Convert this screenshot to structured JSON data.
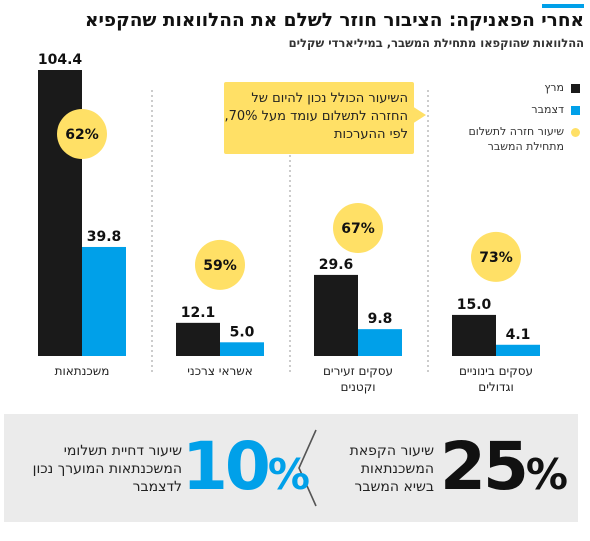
{
  "header": {
    "title": "אחרי הפאניקה: הציבור חוזר לשלם את ההלוואות שהקפיא",
    "subtitle": "ההלוואות שהוקפאו מתחילת המשבר, במיליארדי שקלים"
  },
  "callout": {
    "text": "השיעור הכולל נכון להיום של החזרה לתשלום עומד מעל 70%, לפי ההערכות"
  },
  "legend": [
    {
      "label": "מרץ",
      "color": "#1a1a1a",
      "shape": "square"
    },
    {
      "label": "דצמבר",
      "color": "#00a0e9",
      "shape": "square"
    },
    {
      "label": "שיעור חזרה לתשלום מתחילת המשבר",
      "color": "#ffe066",
      "shape": "circle"
    }
  ],
  "chart_data": {
    "type": "bar",
    "categories": [
      "משכנתאות",
      "אשראי צרכני",
      "עסקים זעירים וקטנים",
      "עסקים בינוניים וגדולים"
    ],
    "series": [
      {
        "name": "מרץ",
        "values": [
          104.4,
          12.1,
          29.6,
          15.0
        ],
        "labels": [
          "104.4",
          "12.1",
          "29.6",
          "15.0"
        ]
      },
      {
        "name": "דצמבר",
        "values": [
          39.8,
          5.0,
          9.8,
          4.1
        ],
        "labels": [
          "39.8",
          "5.0",
          "9.8",
          "4.1"
        ]
      }
    ],
    "return_rates": [
      "62%",
      "59%",
      "67%",
      "73%"
    ],
    "colors": {
      "march": "#1a1a1a",
      "december": "#00a0e9",
      "rate": "#ffe066"
    },
    "ylim": [
      0,
      104.4
    ],
    "grid": false
  },
  "stats": {
    "freeze_rate_value": "25",
    "freeze_rate_pct": "%",
    "freeze_rate_label": "שיעור הקפאת המשכנתאות בשיא המשבר",
    "deferral_rate_value": "10",
    "deferral_rate_pct": "%",
    "deferral_rate_label": "שיעור דחיית תשלומי המשכנתאות המוערך נכון לדצמבר"
  }
}
